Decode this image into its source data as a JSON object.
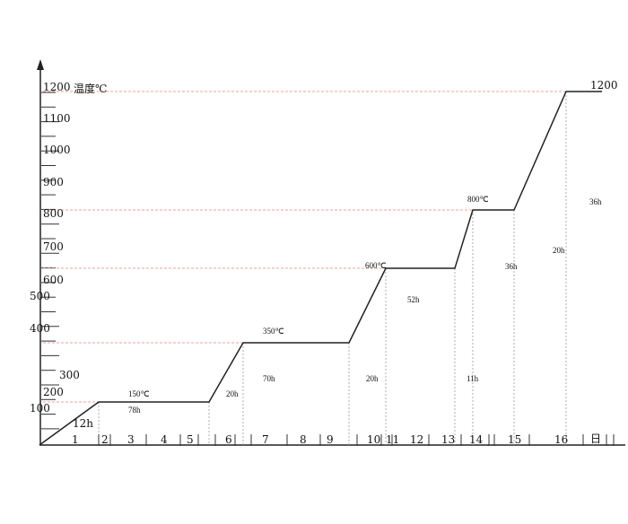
{
  "chart_data": {
    "type": "line",
    "title": "",
    "ylabel": "温度℃",
    "xlabel": "日",
    "y_tick_labels": [
      "1200",
      "1100",
      "1000",
      "900",
      "800",
      "700",
      "600",
      "500",
      "400",
      "300",
      "200",
      "100"
    ],
    "x_tick_labels": [
      "1",
      "2",
      "3",
      "4",
      "5",
      "6",
      "7",
      "8",
      "9",
      "10",
      "11",
      "12",
      "13",
      "14",
      "15",
      "16"
    ],
    "colors": {
      "curve": "#222222",
      "reference_lines": "#f0a0a0",
      "drop_lines": "#999999"
    },
    "grid": false,
    "segments": [
      {
        "type": "heat",
        "from_c": 0,
        "to_c": 150,
        "duration": "12h"
      },
      {
        "type": "hold",
        "temp_c": 150,
        "duration": "78h"
      },
      {
        "type": "heat",
        "from_c": 150,
        "to_c": 350,
        "duration": "20h"
      },
      {
        "type": "hold",
        "temp_c": 350,
        "duration": "70h"
      },
      {
        "type": "heat",
        "from_c": 350,
        "to_c": 600,
        "duration": "20h"
      },
      {
        "type": "hold",
        "temp_c": 600,
        "duration": "52h"
      },
      {
        "type": "heat",
        "from_c": 600,
        "to_c": 800,
        "duration": "11h"
      },
      {
        "type": "hold",
        "temp_c": 800,
        "duration": "36h"
      },
      {
        "type": "heat",
        "from_c": 800,
        "to_c": 1200,
        "duration": "20h"
      },
      {
        "type": "hold",
        "temp_c": 1200,
        "duration": "36h"
      }
    ],
    "points_c": [
      0,
      150,
      150,
      350,
      350,
      600,
      600,
      800,
      800,
      1200,
      1200
    ],
    "annotations": {
      "t150": "150℃",
      "t350": "350℃",
      "t600": "600℃",
      "t800": "800℃",
      "t1200": "1200"
    }
  }
}
